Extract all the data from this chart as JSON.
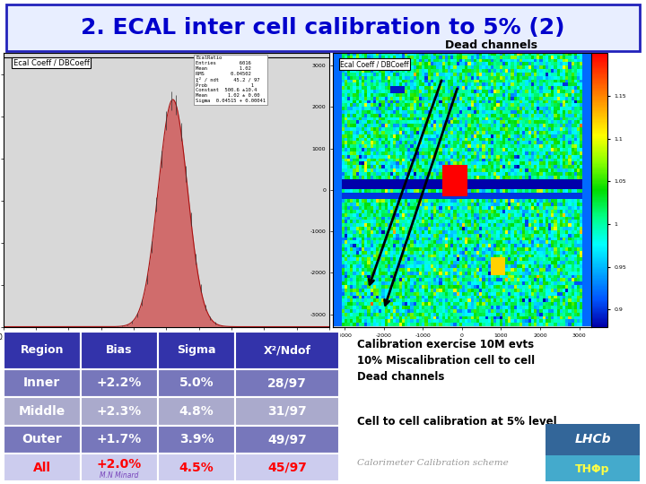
{
  "title": "2. ECAL inter cell calibration to 5% (2)",
  "title_color": "#0000CC",
  "title_bg": "#E8EEFF",
  "title_border": "#2222BB",
  "title_fontsize": 18,
  "table_headers": [
    "Region",
    "Bias",
    "Sigma",
    "Χ²/Ndof"
  ],
  "table_rows": [
    [
      "Inner",
      "+2.2%",
      "5.0%",
      "28/97"
    ],
    [
      "Middle",
      "+2.3%",
      "4.8%",
      "31/97"
    ],
    [
      "Outer",
      "+1.7%",
      "3.9%",
      "49/97"
    ],
    [
      "All",
      "+2.0%",
      "4.5%",
      "45/97"
    ]
  ],
  "table_header_bg": "#3333AA",
  "table_header_fg": "white",
  "table_row_bg_dark": "#7777BB",
  "table_row_bg_light": "#AAAACC",
  "table_row_bg_all": "#CCCCEE",
  "table_row_fg_normal": "white",
  "table_row_fg_all": "red",
  "table_all_note": "M.N Minard",
  "right_text_lines": [
    "Calibration exercise 10M evts",
    "10% Miscalibration cell to cell",
    "Dead channels"
  ],
  "right_text2": "Cell to cell calibration at 5% level",
  "bottom_text": "Calorimeter Calibration scheme",
  "dead_channels_label": "Dead channels",
  "hist_bg": "#D8D8D8",
  "map_colorbar_ticks": [
    "0.9",
    "0.95",
    "1.05",
    "1.1",
    "1.15"
  ],
  "slide_bg": "#FFFFFF",
  "hist_label": "Ecal Coeff / DBCoeff",
  "map_label": "Ecal Coeff / DBCoeff"
}
